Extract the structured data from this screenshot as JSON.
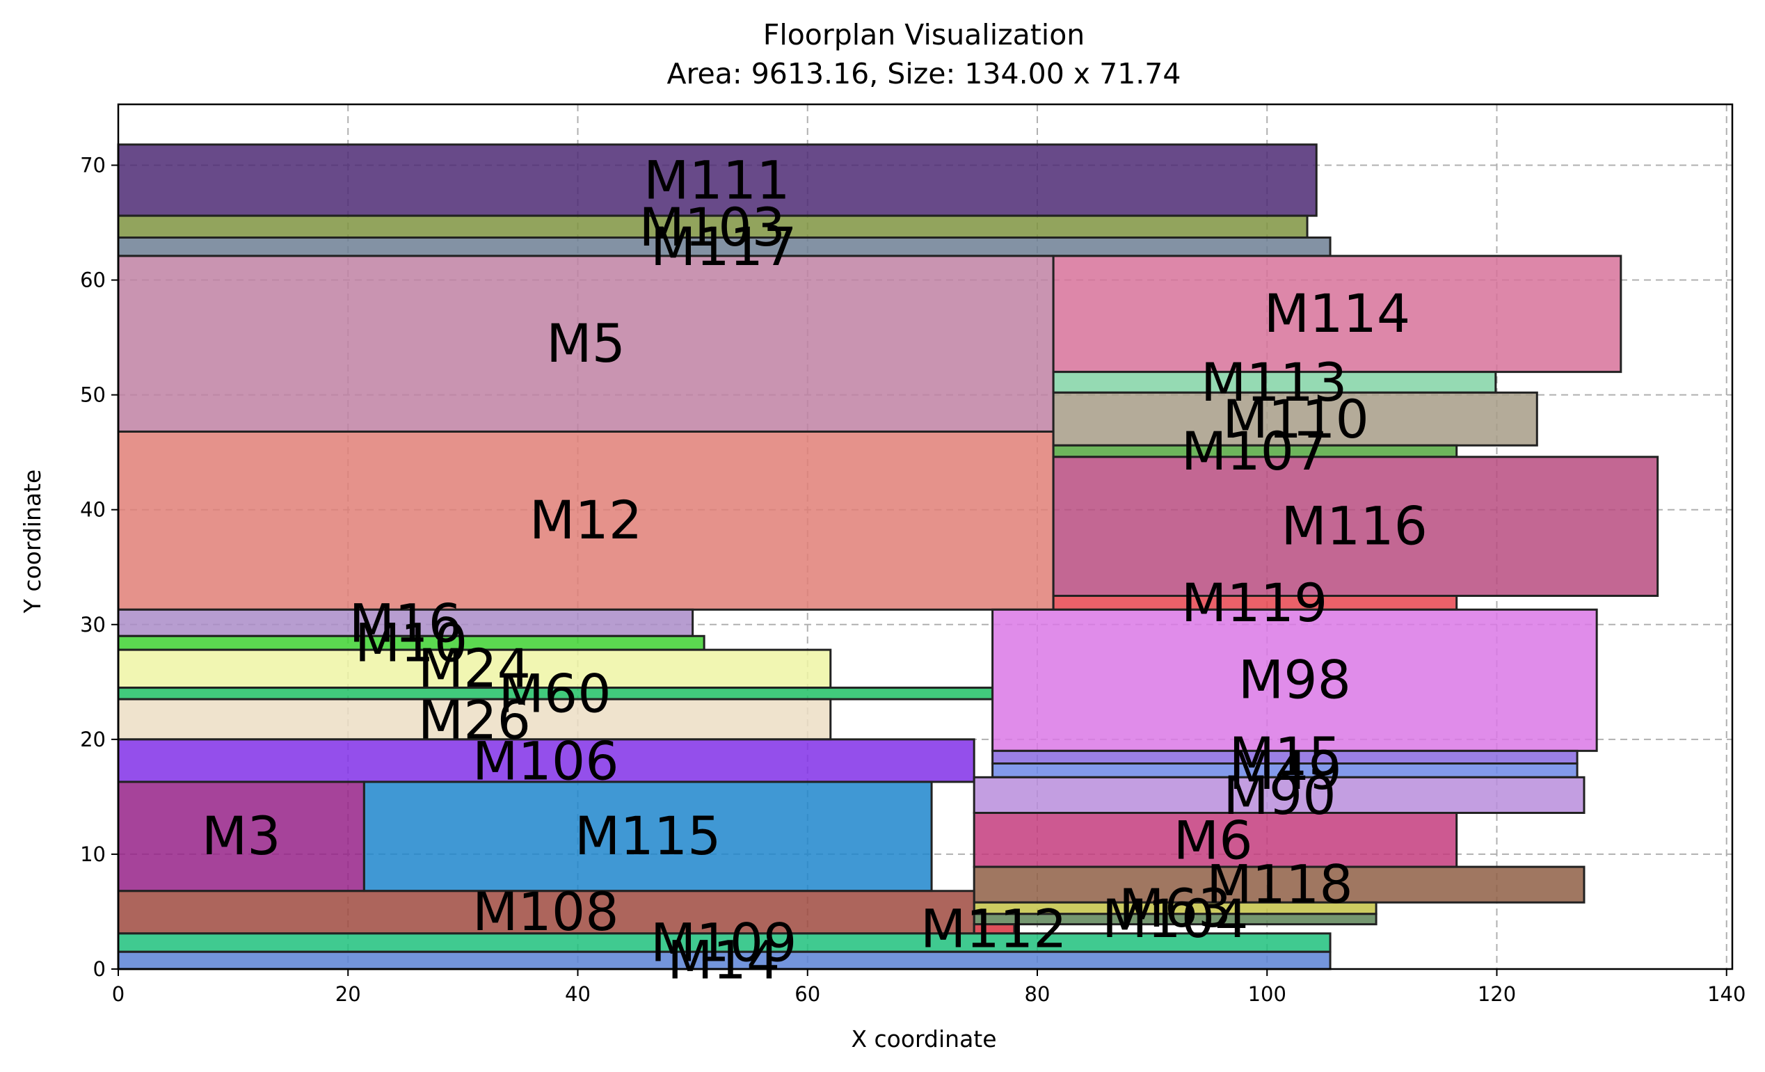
{
  "chart_data": {
    "type": "floorplan",
    "title": "Floorplan Visualization",
    "subtitle": "Area: 9613.16, Size: 134.00 x 71.74",
    "xlabel": "X coordinate",
    "ylabel": "Y coordinate",
    "xlim": [
      0,
      140.5
    ],
    "ylim": [
      0,
      75.3
    ],
    "xticks": [
      0,
      20,
      40,
      60,
      80,
      100,
      120,
      140
    ],
    "yticks": [
      0,
      10,
      20,
      30,
      40,
      50,
      60,
      70
    ],
    "grid": true,
    "modules": [
      {
        "name": "M111",
        "x": 0,
        "y": 65.6,
        "w": 104.3,
        "h": 6.2,
        "color": "#4e2a74"
      },
      {
        "name": "M103",
        "x": 0,
        "y": 63.7,
        "w": 103.5,
        "h": 1.9,
        "color": "#7f9441"
      },
      {
        "name": "M117",
        "x": 0,
        "y": 62.1,
        "w": 105.5,
        "h": 1.6,
        "color": "#6d7f94"
      },
      {
        "name": "M5",
        "x": 0,
        "y": 46.8,
        "w": 81.4,
        "h": 15.3,
        "color": "#bf81a3"
      },
      {
        "name": "M12",
        "x": 0,
        "y": 31.3,
        "w": 81.4,
        "h": 15.5,
        "color": "#e07f77"
      },
      {
        "name": "M114",
        "x": 81.4,
        "y": 52.0,
        "w": 49.4,
        "h": 10.1,
        "color": "#d7729a"
      },
      {
        "name": "M113",
        "x": 81.4,
        "y": 50.2,
        "w": 38.5,
        "h": 1.8,
        "color": "#83d4a6"
      },
      {
        "name": "M110",
        "x": 81.4,
        "y": 45.6,
        "w": 42.1,
        "h": 4.6,
        "color": "#a79c87"
      },
      {
        "name": "M107",
        "x": 81.4,
        "y": 44.6,
        "w": 35.1,
        "h": 1.0,
        "color": "#54a83f"
      },
      {
        "name": "M116",
        "x": 81.4,
        "y": 32.5,
        "w": 52.6,
        "h": 12.1,
        "color": "#b84c80"
      },
      {
        "name": "M119",
        "x": 81.4,
        "y": 31.3,
        "w": 35.1,
        "h": 1.2,
        "color": "#e8454f"
      },
      {
        "name": "M16",
        "x": 0,
        "y": 29.0,
        "w": 50.0,
        "h": 2.3,
        "color": "#aa8cc8"
      },
      {
        "name": "M10",
        "x": 0,
        "y": 27.8,
        "w": 51.0,
        "h": 1.2,
        "color": "#3ed231"
      },
      {
        "name": "M24",
        "x": 0,
        "y": 24.5,
        "w": 62.0,
        "h": 3.3,
        "color": "#eef4a5"
      },
      {
        "name": "M60",
        "x": 0,
        "y": 23.5,
        "w": 76.1,
        "h": 1.0,
        "color": "#20c165"
      },
      {
        "name": "M26",
        "x": 0,
        "y": 20.0,
        "w": 62.0,
        "h": 3.5,
        "color": "#ecdec4"
      },
      {
        "name": "M98",
        "x": 76.1,
        "y": 19.0,
        "w": 52.6,
        "h": 12.3,
        "color": "#db78e6"
      },
      {
        "name": "M15",
        "x": 76.1,
        "y": 17.9,
        "w": 50.9,
        "h": 1.1,
        "color": "#8a6ae0"
      },
      {
        "name": "M49",
        "x": 76.1,
        "y": 16.7,
        "w": 50.9,
        "h": 1.2,
        "color": "#6d88e8"
      },
      {
        "name": "M106",
        "x": 0,
        "y": 16.3,
        "w": 74.5,
        "h": 3.7,
        "color": "#8130e8"
      },
      {
        "name": "M3",
        "x": 0,
        "y": 6.8,
        "w": 21.4,
        "h": 9.5,
        "color": "#962288"
      },
      {
        "name": "M115",
        "x": 21.4,
        "y": 6.8,
        "w": 49.4,
        "h": 9.5,
        "color": "#1f86cc"
      },
      {
        "name": "M90",
        "x": 74.5,
        "y": 13.6,
        "w": 53.1,
        "h": 3.1,
        "color": "#b98ddc"
      },
      {
        "name": "M6",
        "x": 74.5,
        "y": 8.9,
        "w": 42.0,
        "h": 4.7,
        "color": "#c43c7e"
      },
      {
        "name": "M118",
        "x": 74.5,
        "y": 5.8,
        "w": 53.1,
        "h": 3.1,
        "color": "#8f5f45"
      },
      {
        "name": "M63",
        "x": 74.5,
        "y": 4.8,
        "w": 35.0,
        "h": 1.0,
        "color": "#c3c245"
      },
      {
        "name": "M104",
        "x": 74.5,
        "y": 3.9,
        "w": 35.0,
        "h": 0.9,
        "color": "#5d8557"
      },
      {
        "name": "M108",
        "x": 0,
        "y": 3.1,
        "w": 74.5,
        "h": 3.7,
        "color": "#9f4a40"
      },
      {
        "name": "M112",
        "x": 74.5,
        "y": 3.1,
        "w": 3.5,
        "h": 0.8,
        "color": "#d8313e"
      },
      {
        "name": "M109",
        "x": 0,
        "y": 1.5,
        "w": 105.5,
        "h": 1.6,
        "color": "#1ec17c"
      },
      {
        "name": "M14",
        "x": 0,
        "y": 0,
        "w": 105.5,
        "h": 1.5,
        "color": "#5a83d6"
      }
    ],
    "labels": [
      {
        "name": "M111",
        "x": 52.1,
        "y": 68.7
      },
      {
        "name": "M103",
        "x": 51.7,
        "y": 64.6
      },
      {
        "name": "M117",
        "x": 52.7,
        "y": 62.9
      },
      {
        "name": "M5",
        "x": 40.7,
        "y": 54.5
      },
      {
        "name": "M12",
        "x": 40.7,
        "y": 39.1
      },
      {
        "name": "M114",
        "x": 106.1,
        "y": 57.1
      },
      {
        "name": "M113",
        "x": 100.6,
        "y": 51.1
      },
      {
        "name": "M110",
        "x": 102.5,
        "y": 47.9
      },
      {
        "name": "M107",
        "x": 98.9,
        "y": 45.1
      },
      {
        "name": "M116",
        "x": 107.6,
        "y": 38.6
      },
      {
        "name": "M119",
        "x": 98.9,
        "y": 31.9
      },
      {
        "name": "M16",
        "x": 25.0,
        "y": 30.1
      },
      {
        "name": "M10",
        "x": 25.5,
        "y": 28.4
      },
      {
        "name": "M24",
        "x": 31.0,
        "y": 26.2
      },
      {
        "name": "M60",
        "x": 38.0,
        "y": 24.0
      },
      {
        "name": "M26",
        "x": 31.0,
        "y": 21.7
      },
      {
        "name": "M98",
        "x": 102.4,
        "y": 25.2
      },
      {
        "name": "M15",
        "x": 101.6,
        "y": 18.5
      },
      {
        "name": "M49",
        "x": 101.6,
        "y": 17.3
      },
      {
        "name": "M106",
        "x": 37.2,
        "y": 18.1
      },
      {
        "name": "M3",
        "x": 10.7,
        "y": 11.6
      },
      {
        "name": "M115",
        "x": 46.1,
        "y": 11.6
      },
      {
        "name": "M90",
        "x": 101.1,
        "y": 15.1
      },
      {
        "name": "M6",
        "x": 95.3,
        "y": 11.2
      },
      {
        "name": "M118",
        "x": 101.1,
        "y": 7.4
      },
      {
        "name": "M63",
        "x": 92.0,
        "y": 5.3
      },
      {
        "name": "M104",
        "x": 92.0,
        "y": 4.4
      },
      {
        "name": "M108",
        "x": 37.2,
        "y": 5.0
      },
      {
        "name": "M112",
        "x": 76.2,
        "y": 3.5
      },
      {
        "name": "M109",
        "x": 52.7,
        "y": 2.3
      },
      {
        "name": "M14",
        "x": 52.7,
        "y": 0.8
      }
    ]
  }
}
